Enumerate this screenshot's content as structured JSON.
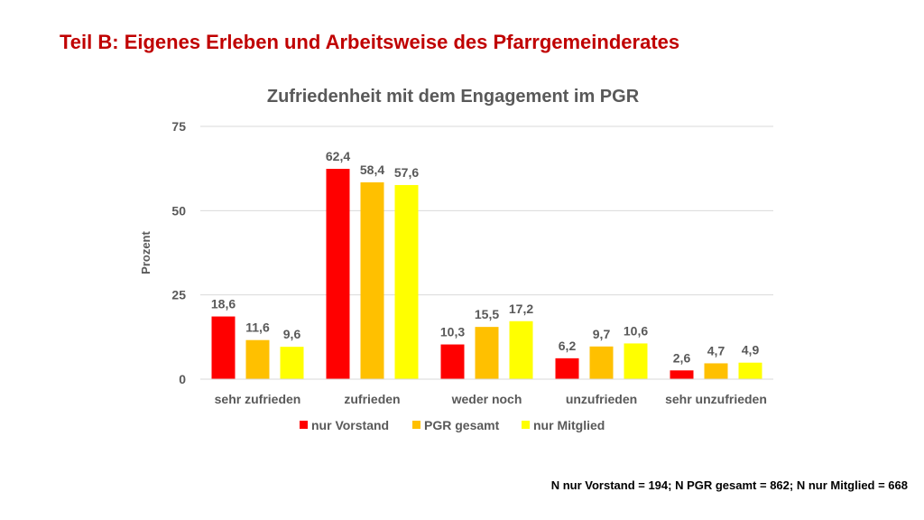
{
  "slide": {
    "title": "Teil B: Eigenes Erleben und Arbeitsweise des Pfarrgemeinderates",
    "footnote": "N nur Vorstand = 194; N PGR gesamt = 862; N nur Mitglied = 668"
  },
  "colors": {
    "title": "#c00000",
    "nur_vorstand": "#ff0000",
    "pgr_gesamt": "#ffc000",
    "nur_mitglied": "#ffff00",
    "grid": "#d9d9d9",
    "text": "#595959"
  },
  "chart_data": {
    "type": "bar",
    "title": "Zufriedenheit mit dem Engagement im PGR",
    "xlabel": "",
    "ylabel": "Prozent",
    "ylim": [
      0,
      75
    ],
    "yticks": [
      "0",
      "25",
      "50",
      "75"
    ],
    "grid": true,
    "legend_position": "bottom",
    "categories": [
      "sehr zufrieden",
      "zufrieden",
      "weder noch",
      "unzufrieden",
      "sehr unzufrieden"
    ],
    "series": [
      {
        "name": "nur Vorstand",
        "color": "#ff0000",
        "values": [
          18.6,
          62.4,
          10.3,
          6.2,
          2.6
        ],
        "labels": [
          "18,6",
          "62,4",
          "10,3",
          "6,2",
          "2,6"
        ]
      },
      {
        "name": "PGR gesamt",
        "color": "#ffc000",
        "values": [
          11.6,
          58.4,
          15.5,
          9.7,
          4.7
        ],
        "labels": [
          "11,6",
          "58,4",
          "15,5",
          "9,7",
          "4,7"
        ]
      },
      {
        "name": "nur Mitglied",
        "color": "#ffff00",
        "values": [
          9.6,
          57.6,
          17.2,
          10.6,
          4.9
        ],
        "labels": [
          "9,6",
          "57,6",
          "17,2",
          "10,6",
          "4,9"
        ]
      }
    ]
  }
}
